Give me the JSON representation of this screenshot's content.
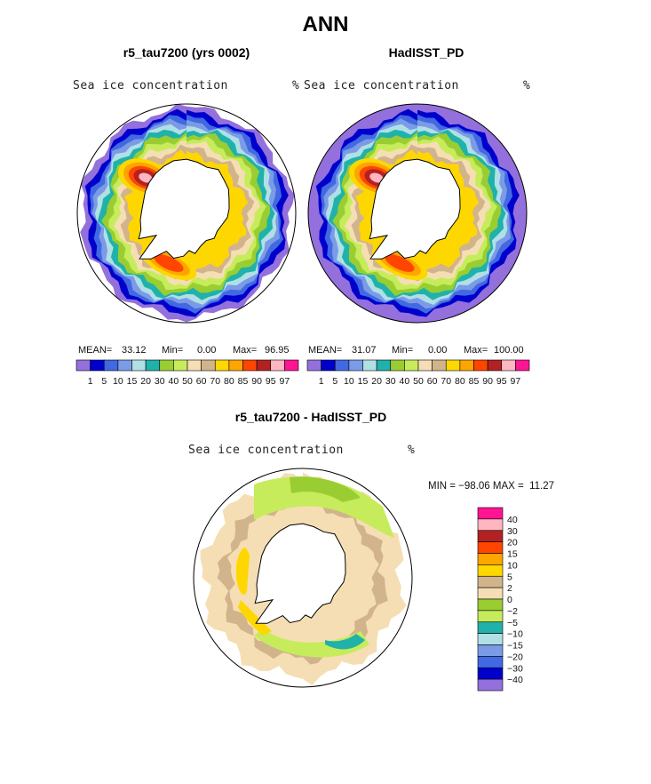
{
  "page": {
    "title": "ANN",
    "bottom_title": "r5_tau7200 - HadISST_PD"
  },
  "panels": [
    {
      "title": "r5_tau7200 (yrs 0002)",
      "variable": "Sea ice concentration",
      "units": "%",
      "mean_label": "MEAN=",
      "mean": "33.12",
      "min_label": "Min=",
      "min": "0.00",
      "max_label": "Max=",
      "max": "96.95"
    },
    {
      "title": "HadISST_PD",
      "variable": "Sea ice concentration",
      "units": "%",
      "mean_label": "MEAN=",
      "mean": "31.07",
      "min_label": "Min=",
      "min": "0.00",
      "max_label": "Max=",
      "max": "100.00"
    }
  ],
  "diff_panel": {
    "variable": "Sea ice concentration",
    "units": "%",
    "minmax_text": "MIN = −98.06 MAX =  11.27"
  },
  "chart_data": [
    {
      "type": "heatmap",
      "title": "r5_tau7200 (yrs 0002)",
      "projection": "south-polar-stereographic",
      "variable": "Sea ice concentration (%)",
      "levels": [
        1,
        5,
        10,
        15,
        20,
        30,
        40,
        50,
        60,
        70,
        80,
        85,
        90,
        95,
        97
      ],
      "level_labels": [
        "1",
        "5",
        "10",
        "15",
        "20",
        "30",
        "40",
        "50",
        "60",
        "70",
        "80",
        "85",
        "90",
        "95",
        "97"
      ],
      "colors": [
        "#9370db",
        "#0000cd",
        "#4169e1",
        "#7b9be6",
        "#b0e0e6",
        "#20b2aa",
        "#9acd32",
        "#c6ec5b",
        "#f5deb3",
        "#d2b48c",
        "#ffd700",
        "#ffa500",
        "#ff4500",
        "#b22222",
        "#ffb6c1",
        "#ff1493"
      ],
      "stats": {
        "mean": 33.12,
        "min": 0.0,
        "max": 96.95
      }
    },
    {
      "type": "heatmap",
      "title": "HadISST_PD",
      "projection": "south-polar-stereographic",
      "variable": "Sea ice concentration (%)",
      "levels": [
        1,
        5,
        10,
        15,
        20,
        30,
        40,
        50,
        60,
        70,
        80,
        85,
        90,
        95,
        97
      ],
      "level_labels": [
        "1",
        "5",
        "10",
        "15",
        "20",
        "30",
        "40",
        "50",
        "60",
        "70",
        "80",
        "85",
        "90",
        "95",
        "97"
      ],
      "colors": [
        "#9370db",
        "#0000cd",
        "#4169e1",
        "#7b9be6",
        "#b0e0e6",
        "#20b2aa",
        "#9acd32",
        "#c6ec5b",
        "#f5deb3",
        "#d2b48c",
        "#ffd700",
        "#ffa500",
        "#ff4500",
        "#b22222",
        "#ffb6c1",
        "#ff1493"
      ],
      "stats": {
        "mean": 31.07,
        "min": 0.0,
        "max": 100.0
      }
    },
    {
      "type": "heatmap",
      "title": "r5_tau7200 - HadISST_PD",
      "projection": "south-polar-stereographic",
      "variable": "Sea ice concentration difference (%)",
      "levels": [
        -40,
        -30,
        -20,
        -15,
        -10,
        -5,
        -2,
        0,
        2,
        5,
        10,
        15,
        20,
        30,
        40
      ],
      "level_labels": [
        "−40",
        "−30",
        "−20",
        "−15",
        "−10",
        "−5",
        "−2",
        "0",
        "2",
        "5",
        "10",
        "15",
        "20",
        "30",
        "40"
      ],
      "colors": [
        "#9370db",
        "#0000cd",
        "#4169e1",
        "#7b9be6",
        "#b0e0e6",
        "#20b2aa",
        "#c6ec5b",
        "#9acd32",
        "#f5deb3",
        "#d2b48c",
        "#ffd700",
        "#ffa500",
        "#ff4500",
        "#b22222",
        "#ffb6c1",
        "#ff1493"
      ],
      "stats": {
        "min": -98.06,
        "max": 11.27
      }
    }
  ]
}
